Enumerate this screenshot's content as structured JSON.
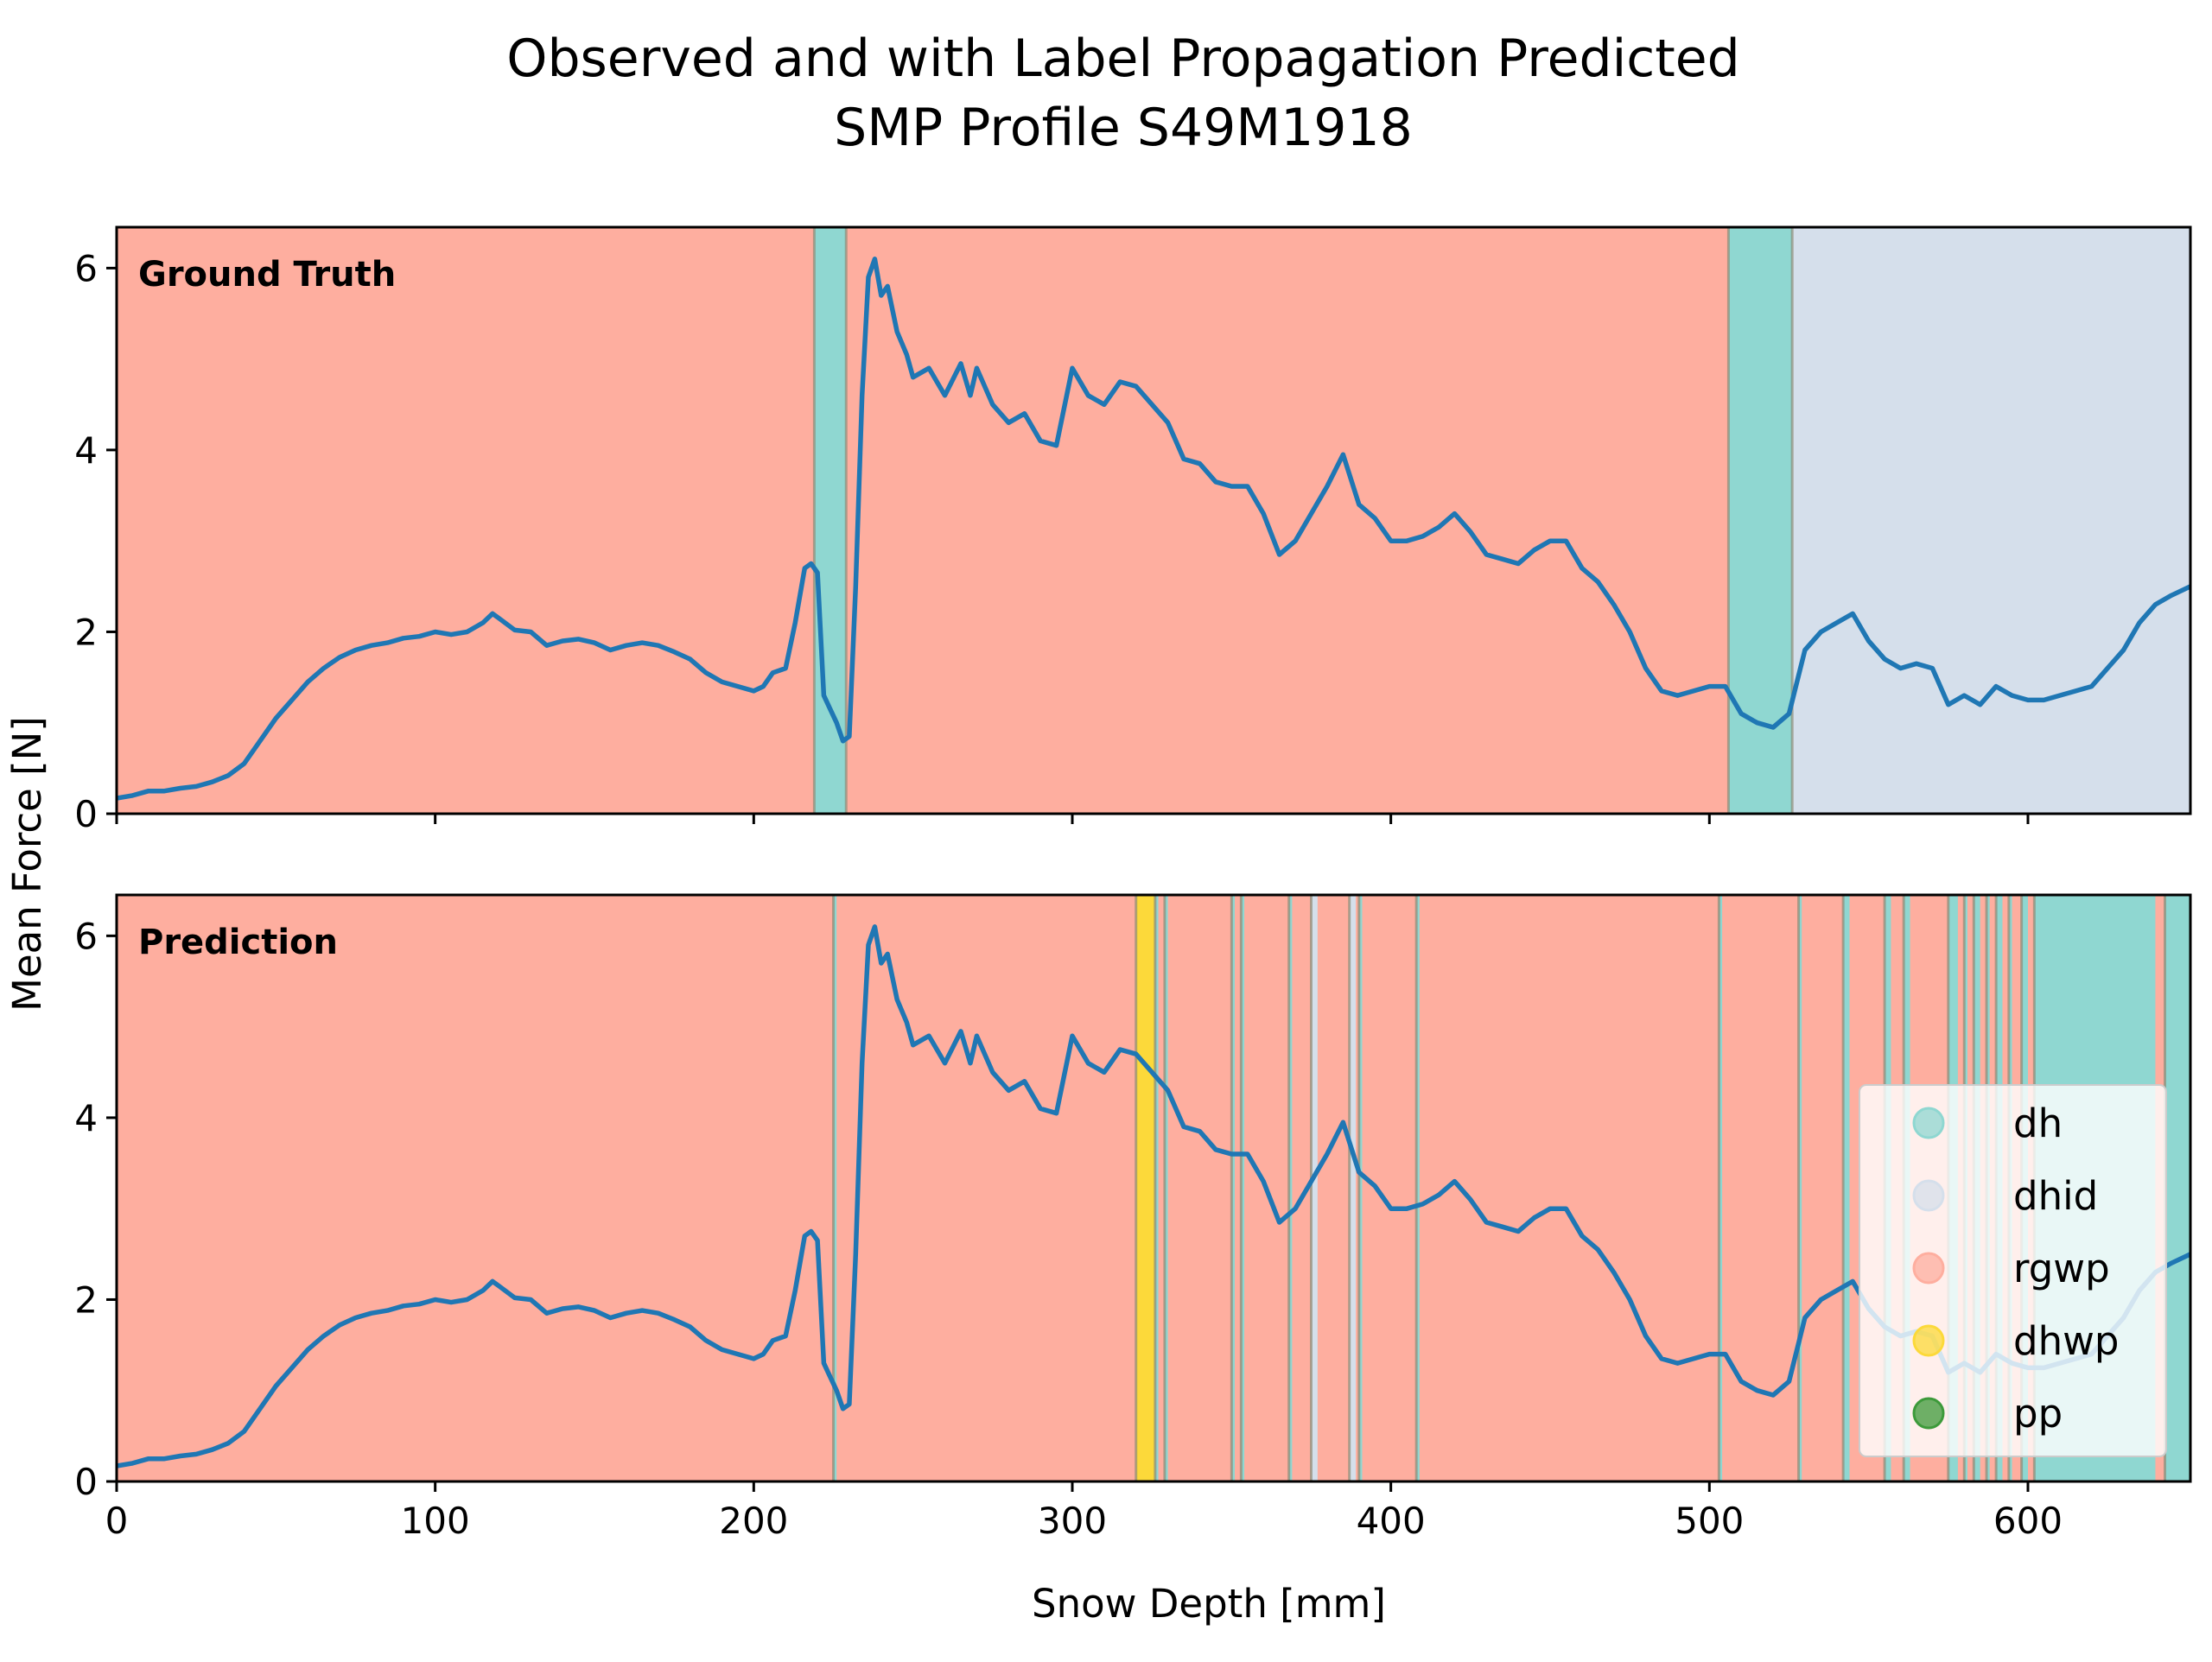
{
  "chart_data": {
    "type": "line",
    "title": "Observed and with Label Propagation Predicted",
    "subtitle": "SMP Profile S49M1918",
    "xlabel": "Snow Depth [mm]",
    "ylabel": "Mean Force [N]",
    "xlim": [
      0,
      651
    ],
    "ylim": [
      0,
      6.45
    ],
    "x_ticks": [
      0,
      100,
      200,
      300,
      400,
      500,
      600
    ],
    "y_ticks": [
      0,
      2,
      4,
      6
    ],
    "grid": false,
    "legend_location": "lower-right",
    "line_color": "#1f77b4",
    "classes": [
      {
        "name": "dh",
        "color": "#8fd7d1"
      },
      {
        "name": "dhid",
        "color": "#d5dfeb"
      },
      {
        "name": "rgwp",
        "color": "#feae9f"
      },
      {
        "name": "dhwp",
        "color": "#fcd93a"
      },
      {
        "name": "pp",
        "color": "#3d9a3a"
      }
    ],
    "series": [
      {
        "x": [
          0,
          5,
          10,
          15,
          20,
          25,
          30,
          35,
          40,
          45,
          50,
          55,
          60,
          65,
          70,
          75,
          80,
          85,
          90,
          95,
          100,
          105,
          110,
          115,
          118,
          120,
          125,
          130,
          135,
          140,
          145,
          150,
          155,
          160,
          165,
          170,
          175,
          180,
          185,
          190,
          195,
          200,
          203,
          206,
          210,
          213,
          216,
          218,
          220,
          222,
          224,
          226,
          228,
          230,
          232,
          234,
          236,
          238,
          240,
          242,
          245,
          248,
          250,
          255,
          260,
          265,
          268,
          270,
          275,
          280,
          285,
          290,
          295,
          300,
          305,
          310,
          315,
          320,
          325,
          330,
          335,
          340,
          345,
          350,
          355,
          360,
          365,
          370,
          375,
          380,
          385,
          390,
          395,
          400,
          405,
          410,
          415,
          420,
          425,
          430,
          435,
          440,
          445,
          450,
          455,
          460,
          465,
          470,
          475,
          480,
          485,
          490,
          495,
          500,
          505,
          510,
          515,
          520,
          525,
          530,
          535,
          540,
          545,
          550,
          555,
          560,
          565,
          570,
          575,
          580,
          585,
          590,
          595,
          600,
          605,
          610,
          615,
          620,
          625,
          630,
          635,
          640,
          645,
          651
        ],
        "y": [
          0.17,
          0.2,
          0.25,
          0.25,
          0.28,
          0.3,
          0.35,
          0.42,
          0.55,
          0.8,
          1.05,
          1.25,
          1.45,
          1.6,
          1.72,
          1.8,
          1.85,
          1.88,
          1.93,
          1.95,
          2.0,
          1.97,
          2.0,
          2.1,
          2.2,
          2.15,
          2.02,
          2.0,
          1.85,
          1.9,
          1.92,
          1.88,
          1.8,
          1.85,
          1.88,
          1.85,
          1.78,
          1.7,
          1.55,
          1.45,
          1.4,
          1.35,
          1.4,
          1.55,
          1.6,
          2.1,
          2.7,
          2.75,
          2.65,
          1.3,
          1.15,
          1.0,
          0.8,
          0.85,
          2.5,
          4.6,
          5.9,
          6.1,
          5.7,
          5.8,
          5.3,
          5.05,
          4.8,
          4.9,
          4.6,
          4.95,
          4.6,
          4.9,
          4.5,
          4.3,
          4.4,
          4.1,
          4.05,
          4.9,
          4.6,
          4.5,
          4.75,
          4.7,
          4.5,
          4.3,
          3.9,
          3.85,
          3.65,
          3.6,
          3.6,
          3.3,
          2.85,
          3.0,
          3.3,
          3.6,
          3.95,
          3.4,
          3.25,
          3.0,
          3.0,
          3.05,
          3.15,
          3.3,
          3.1,
          2.85,
          2.8,
          2.75,
          2.9,
          3.0,
          3.0,
          2.7,
          2.55,
          2.3,
          2.0,
          1.6,
          1.35,
          1.3,
          1.35,
          1.4,
          1.4,
          1.1,
          1.0,
          0.95,
          1.1,
          1.8,
          2.0,
          2.1,
          2.2,
          1.9,
          1.7,
          1.6,
          1.65,
          1.6,
          1.2,
          1.3,
          1.2,
          1.4,
          1.3,
          1.25,
          1.25,
          1.3,
          1.35,
          1.4,
          1.6,
          1.8,
          2.1,
          2.3,
          2.4,
          2.5
        ]
      }
    ],
    "ground_truth": {
      "label": "Ground Truth",
      "segments": [
        {
          "start": 0,
          "end": 219,
          "class": "rgwp"
        },
        {
          "start": 219,
          "end": 229,
          "class": "dh"
        },
        {
          "start": 229,
          "end": 506,
          "class": "rgwp"
        },
        {
          "start": 506,
          "end": 526,
          "class": "dh"
        },
        {
          "start": 526,
          "end": 651,
          "class": "dhid"
        }
      ]
    },
    "prediction": {
      "label": "Prediction",
      "base_class": "rgwp",
      "segments": [
        {
          "start": 225,
          "end": 226,
          "class": "dh"
        },
        {
          "start": 320,
          "end": 326,
          "class": "dhwp"
        },
        {
          "start": 326,
          "end": 327,
          "class": "dh"
        },
        {
          "start": 329,
          "end": 330,
          "class": "dh"
        },
        {
          "start": 350,
          "end": 351,
          "class": "dh"
        },
        {
          "start": 353,
          "end": 354,
          "class": "dh"
        },
        {
          "start": 368,
          "end": 369,
          "class": "dh"
        },
        {
          "start": 375,
          "end": 377,
          "class": "dhid"
        },
        {
          "start": 387,
          "end": 389,
          "class": "dhid"
        },
        {
          "start": 390,
          "end": 391,
          "class": "dh"
        },
        {
          "start": 408,
          "end": 409,
          "class": "dh"
        },
        {
          "start": 503,
          "end": 504,
          "class": "dh"
        },
        {
          "start": 528,
          "end": 529,
          "class": "dh"
        },
        {
          "start": 542,
          "end": 544,
          "class": "dh"
        },
        {
          "start": 555,
          "end": 557,
          "class": "dh"
        },
        {
          "start": 561,
          "end": 563,
          "class": "dh"
        },
        {
          "start": 575,
          "end": 578,
          "class": "dh"
        },
        {
          "start": 580,
          "end": 581,
          "class": "dh"
        },
        {
          "start": 583,
          "end": 585,
          "class": "dh"
        },
        {
          "start": 587,
          "end": 588,
          "class": "dh"
        },
        {
          "start": 590,
          "end": 592,
          "class": "dh"
        },
        {
          "start": 594,
          "end": 595,
          "class": "dh"
        },
        {
          "start": 598,
          "end": 600,
          "class": "dh"
        },
        {
          "start": 602,
          "end": 640,
          "class": "dh"
        },
        {
          "start": 643,
          "end": 651,
          "class": "dh"
        }
      ]
    }
  }
}
